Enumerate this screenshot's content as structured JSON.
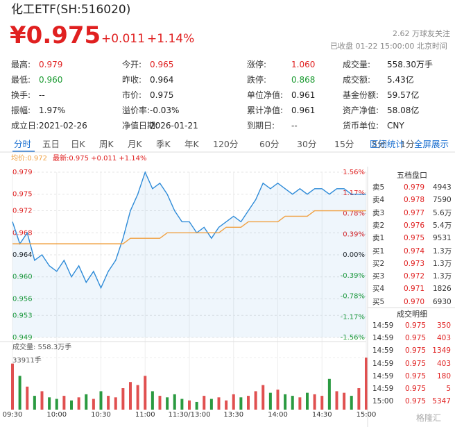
{
  "header": {
    "title": "化工ETF(SH:516020)",
    "price": "¥0.975",
    "change": "+0.011",
    "change_pct": "+1.14%",
    "followers": "2.62 万球友关注",
    "status": "已收盘 01-22 15:00:00 北京时间"
  },
  "stats": [
    [
      {
        "label": "最高:",
        "value": "0.979",
        "color": "#e02020"
      },
      {
        "label": "今开:",
        "value": "0.965",
        "color": "#e02020"
      },
      {
        "label": "涨停:",
        "value": "1.060",
        "color": "#e02020"
      },
      {
        "label": "成交量:",
        "value": "558.30万手"
      }
    ],
    [
      {
        "label": "最低:",
        "value": "0.960",
        "color": "#1a9a30"
      },
      {
        "label": "昨收:",
        "value": "0.964"
      },
      {
        "label": "跌停:",
        "value": "0.868",
        "color": "#1a9a30"
      },
      {
        "label": "成交额:",
        "value": "5.43亿"
      }
    ],
    [
      {
        "label": "换手:",
        "value": "--"
      },
      {
        "label": "市价:",
        "value": "0.975"
      },
      {
        "label": "单位净值:",
        "value": "0.961"
      },
      {
        "label": "基金份额:",
        "value": "59.57亿"
      }
    ],
    [
      {
        "label": "振幅:",
        "value": "1.97%"
      },
      {
        "label": "溢价率:",
        "value": "-0.03%"
      },
      {
        "label": "累计净值:",
        "value": "0.961"
      },
      {
        "label": "资产净值:",
        "value": "58.08亿"
      }
    ],
    [
      {
        "label": "成立日:",
        "value": "2021-02-26"
      },
      {
        "label": "净值日期:",
        "value": "2026-01-21"
      },
      {
        "label": "到期日:",
        "value": "--"
      },
      {
        "label": "货币单位:",
        "value": "CNY"
      }
    ]
  ],
  "tabs": {
    "items": [
      "分时",
      "五日",
      "日K",
      "周K",
      "月K",
      "季K",
      "年K",
      "120分",
      "60分",
      "30分",
      "15分",
      "5分",
      "1分"
    ],
    "active": 0,
    "right": [
      "区间统计",
      "全屏展示"
    ]
  },
  "legend": {
    "avg": "均价:0.972",
    "latest": "最新:0.975 +0.011 +1.14%"
  },
  "chart": {
    "type": "line",
    "categories": [
      "09:30",
      null,
      null,
      null,
      null,
      null,
      "10:00",
      null,
      null,
      null,
      null,
      null,
      "10:30",
      null,
      null,
      null,
      null,
      null,
      "11:00",
      null,
      null,
      null,
      null,
      null,
      "11:30/13:00",
      null,
      null,
      null,
      null,
      null,
      "13:30",
      null,
      null,
      null,
      null,
      null,
      "14:00",
      null,
      null,
      null,
      null,
      null,
      "14:30",
      null,
      null,
      null,
      null,
      null,
      "15:00"
    ],
    "series": [
      {
        "name": "最新",
        "color": "#2e8bd8",
        "values": [
          0.97,
          0.966,
          0.968,
          0.963,
          0.964,
          0.962,
          0.961,
          0.963,
          0.96,
          0.962,
          0.959,
          0.961,
          0.958,
          0.961,
          0.963,
          0.967,
          0.972,
          0.975,
          0.979,
          0.976,
          0.977,
          0.975,
          0.972,
          0.97,
          0.97,
          0.968,
          0.969,
          0.967,
          0.969,
          0.97,
          0.971,
          0.97,
          0.972,
          0.974,
          0.977,
          0.976,
          0.977,
          0.976,
          0.975,
          0.976,
          0.975,
          0.976,
          0.976,
          0.975,
          0.976,
          0.976,
          0.975,
          0.975,
          0.975
        ]
      },
      {
        "name": "均价",
        "color": "#f0a040",
        "values": [
          0.966,
          0.966,
          0.966,
          0.966,
          0.966,
          0.966,
          0.966,
          0.966,
          0.966,
          0.966,
          0.966,
          0.966,
          0.966,
          0.966,
          0.966,
          0.966,
          0.967,
          0.967,
          0.967,
          0.967,
          0.967,
          0.968,
          0.968,
          0.968,
          0.968,
          0.968,
          0.968,
          0.968,
          0.968,
          0.969,
          0.969,
          0.969,
          0.97,
          0.97,
          0.97,
          0.97,
          0.97,
          0.971,
          0.971,
          0.971,
          0.971,
          0.972,
          0.972,
          0.972,
          0.972,
          0.972,
          0.972,
          0.972,
          0.972
        ]
      }
    ],
    "ylim": [
      0.949,
      0.979
    ],
    "yticks": [
      0.979,
      0.975,
      0.972,
      0.968,
      0.964,
      {
        "value": 0.96,
        "label": "0.960"
      },
      0.956,
      0.953,
      0.949
    ],
    "y2lim": [
      -1.56,
      1.56
    ],
    "y2ticks": [
      {
        "value": 1.56,
        "label": "1.56%"
      },
      {
        "value": 1.17,
        "label": "1.17%"
      },
      {
        "value": 0.78,
        "label": "0.78%"
      },
      {
        "value": 0.39,
        "label": "0.39%"
      },
      {
        "value": 0,
        "label": "0.00%"
      },
      {
        "value": -0.39,
        "label": "-0.39%"
      },
      {
        "value": -0.78,
        "label": "-0.78%"
      },
      {
        "value": -1.17,
        "label": "-1.17%"
      },
      {
        "value": -1.56,
        "label": "-1.56%"
      }
    ],
    "volume": {
      "name": "成交量: 558.3万手",
      "ylim": [
        0,
        33911
      ],
      "yticks": [
        {
          "value": 33911,
          "label": "33911手"
        }
      ],
      "values": [
        30000,
        22000,
        15000,
        9000,
        12000,
        8000,
        7000,
        9000,
        6000,
        8000,
        10000,
        7000,
        12000,
        9000,
        8000,
        14000,
        18000,
        16000,
        22000,
        12000,
        9000,
        8000,
        10000,
        7000,
        6000,
        5000,
        9000,
        7000,
        8000,
        6000,
        10000,
        8000,
        9000,
        12000,
        16000,
        11000,
        13000,
        10000,
        9000,
        8000,
        11000,
        10000,
        9000,
        20000,
        12000,
        11000,
        9000,
        14000,
        33911
      ]
    }
  },
  "orderbook": {
    "title": "五档盘口",
    "rows": [
      [
        "卖5",
        "0.979",
        "4943"
      ],
      [
        "卖4",
        "0.978",
        "7590"
      ],
      [
        "卖3",
        "0.977",
        "5.6万"
      ],
      [
        "卖2",
        "0.976",
        "5.4万"
      ],
      [
        "卖1",
        "0.975",
        "9531"
      ],
      [
        "买1",
        "0.974",
        "1.3万"
      ],
      [
        "买2",
        "0.973",
        "1.3万"
      ],
      [
        "买3",
        "0.972",
        "1.3万"
      ],
      [
        "买4",
        "0.971",
        "1826"
      ],
      [
        "买5",
        "0.970",
        "6930"
      ]
    ]
  },
  "trades": {
    "title": "成交明细",
    "rows": [
      [
        "14:59",
        "0.975",
        "350"
      ],
      [
        "14:59",
        "0.975",
        "403"
      ],
      [
        "14:59",
        "0.975",
        "1349"
      ],
      [
        "14:59",
        "0.975",
        "403"
      ],
      [
        "14:59",
        "0.975",
        "180"
      ],
      [
        "14:59",
        "0.975",
        "5"
      ],
      [
        "15:00",
        "0.975",
        "5347"
      ]
    ]
  },
  "watermark": "格隆汇"
}
